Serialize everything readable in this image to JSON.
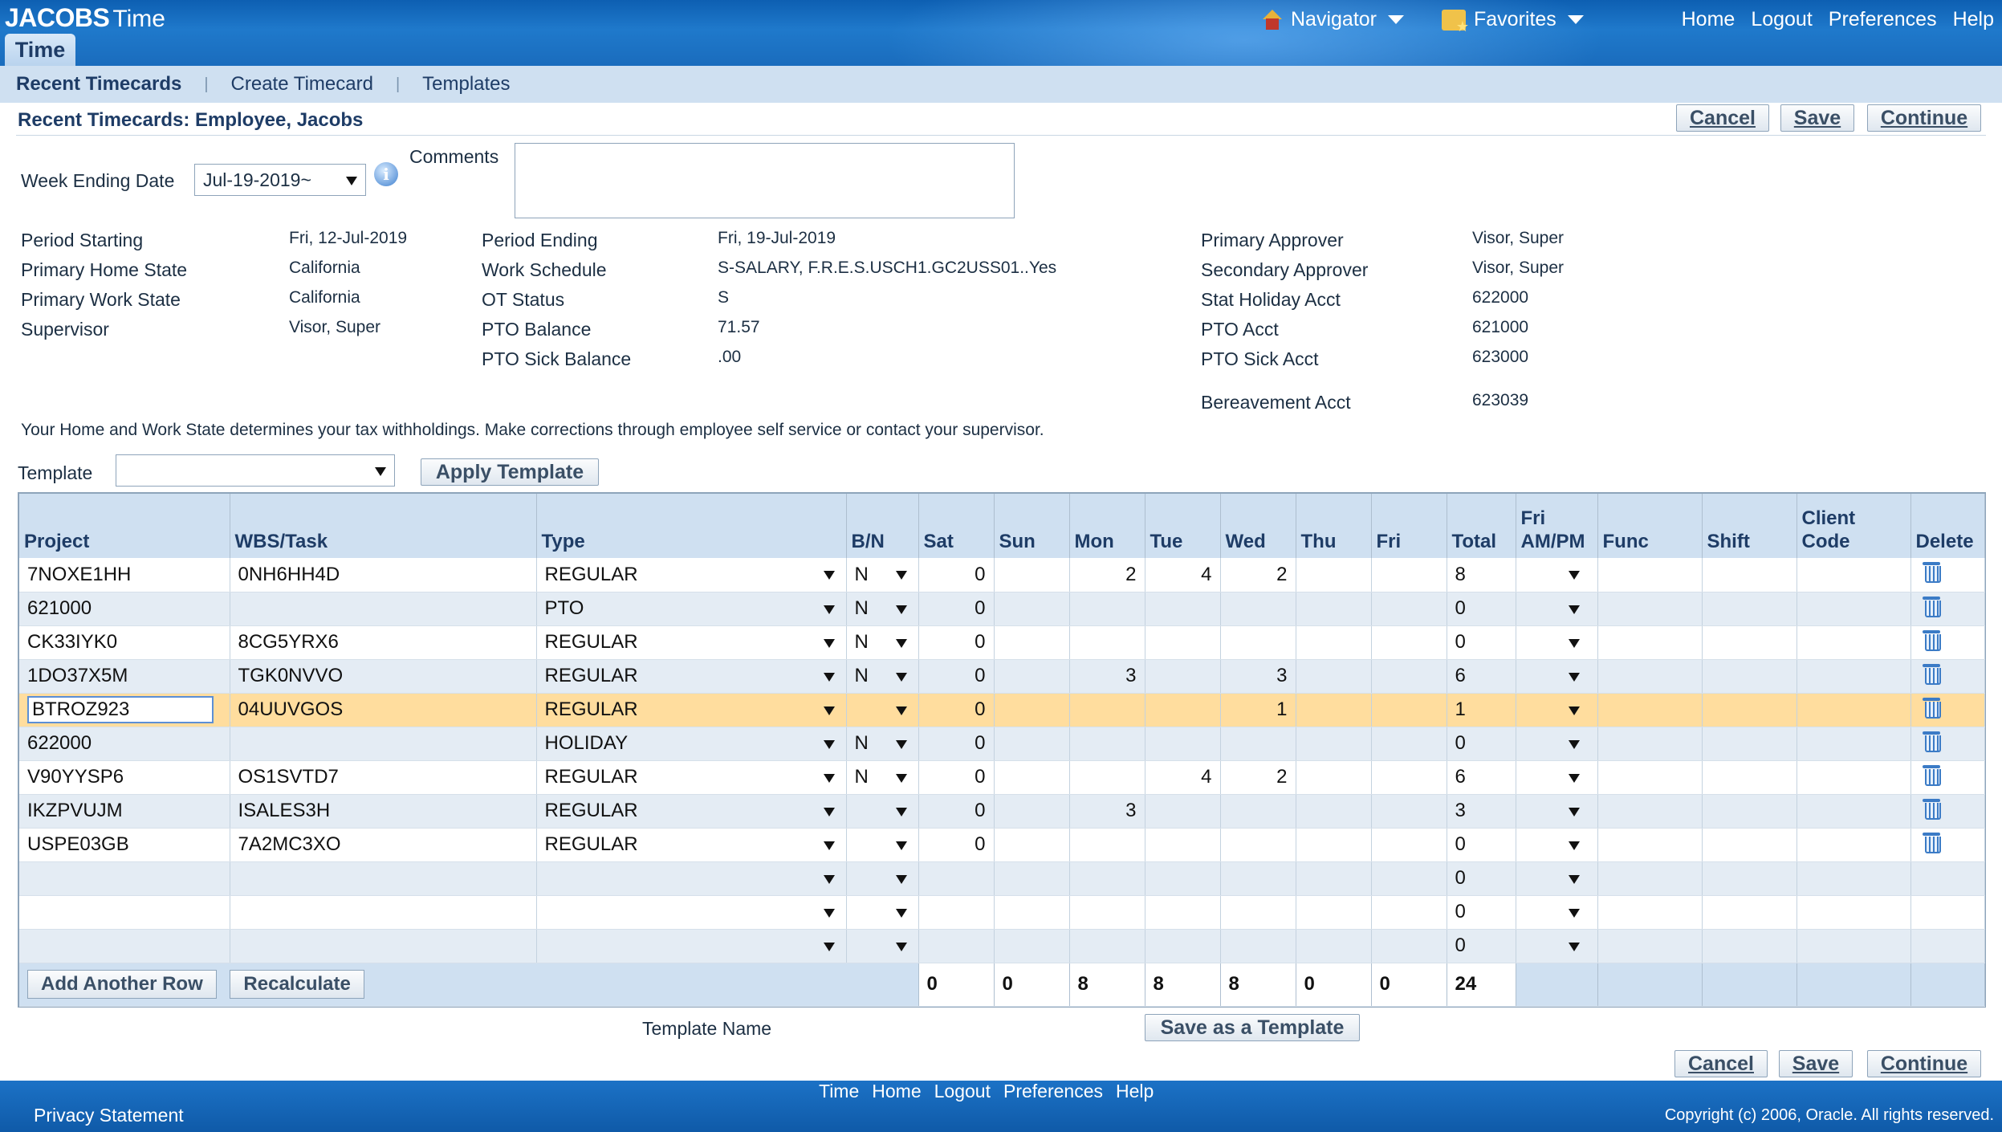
{
  "header": {
    "brand_bold": "JACOBS",
    "brand_light": "Time",
    "app_tab": "Time",
    "navigator": "Navigator",
    "favorites": "Favorites",
    "links": [
      "Home",
      "Logout",
      "Preferences",
      "Help"
    ]
  },
  "subnav": {
    "items": [
      "Recent Timecards",
      "Create Timecard",
      "Templates"
    ],
    "selected": "Recent Timecards"
  },
  "page": {
    "title": "Recent Timecards: Employee, Jacobs",
    "buttons": {
      "cancel": "Cancel",
      "save": "Save",
      "continue": "Continue"
    }
  },
  "form": {
    "week_ending_label": "Week Ending Date",
    "week_ending_value": "Jul-19-2019~",
    "comments_label": "Comments",
    "comments_value": "",
    "col1": [
      {
        "label": "Period Starting",
        "value": "Fri, 12-Jul-2019"
      },
      {
        "label": "Primary Home State",
        "value": "California"
      },
      {
        "label": "Primary Work State",
        "value": "California"
      },
      {
        "label": "Supervisor",
        "value": "Visor, Super"
      }
    ],
    "col2": [
      {
        "label": "Period Ending",
        "value": "Fri, 19-Jul-2019"
      },
      {
        "label": "Work Schedule",
        "value": "S-SALARY, F.R.E.S.USCH1.GC2USS01..Yes"
      },
      {
        "label": "OT Status",
        "value": "S"
      },
      {
        "label": "PTO Balance",
        "value": "71.57"
      },
      {
        "label": "PTO Sick Balance",
        "value": ".00"
      }
    ],
    "col3": [
      {
        "label": "Primary Approver",
        "value": "Visor, Super"
      },
      {
        "label": "Secondary Approver",
        "value": "Visor, Super"
      },
      {
        "label": "Stat Holiday Acct",
        "value": "622000"
      },
      {
        "label": "PTO Acct",
        "value": "621000"
      },
      {
        "label": "PTO Sick Acct",
        "value": "623000"
      },
      {
        "label": "Bereavement Acct",
        "value": "623039"
      }
    ],
    "notice": "Your Home and Work State determines your tax withholdings. Make corrections through employee self service or contact your supervisor.",
    "template_label": "Template",
    "template_value": "",
    "apply_template": "Apply Template"
  },
  "table": {
    "columns": [
      "Project",
      "WBS/Task",
      "Type",
      "B/N",
      "Sat",
      "Sun",
      "Mon",
      "Tue",
      "Wed",
      "Thu",
      "Fri",
      "Total",
      "Fri AM/PM",
      "Func",
      "Shift",
      "Client Code",
      "Delete"
    ],
    "rows": [
      {
        "project": "7NOXE1HH",
        "wbs": "0NH6HH4D",
        "type": "REGULAR",
        "bn": "N",
        "sat": "0",
        "sun": "",
        "mon": "2",
        "tue": "4",
        "wed": "2",
        "thu": "",
        "fri": "",
        "total": "8"
      },
      {
        "project": "621000",
        "wbs": "",
        "type": "PTO",
        "bn": "N",
        "sat": "0",
        "sun": "",
        "mon": "",
        "tue": "",
        "wed": "",
        "thu": "",
        "fri": "",
        "total": "0"
      },
      {
        "project": "CK33IYK0",
        "wbs": "8CG5YRX6",
        "type": "REGULAR",
        "bn": "N",
        "sat": "0",
        "sun": "",
        "mon": "",
        "tue": "",
        "wed": "",
        "thu": "",
        "fri": "",
        "total": "0"
      },
      {
        "project": "1DO37X5M",
        "wbs": "TGK0NVVO",
        "type": "REGULAR",
        "bn": "N",
        "sat": "0",
        "sun": "",
        "mon": "3",
        "tue": "",
        "wed": "3",
        "thu": "",
        "fri": "",
        "total": "6"
      },
      {
        "project": "BTROZ923",
        "wbs": "04UUVGOS",
        "type": "REGULAR",
        "bn": "",
        "sat": "0",
        "sun": "",
        "mon": "",
        "tue": "",
        "wed": "1",
        "thu": "",
        "fri": "",
        "total": "1"
      },
      {
        "project": "622000",
        "wbs": "",
        "type": "HOLIDAY",
        "bn": "N",
        "sat": "0",
        "sun": "",
        "mon": "",
        "tue": "",
        "wed": "",
        "thu": "",
        "fri": "",
        "total": "0"
      },
      {
        "project": "V90YYSP6",
        "wbs": "OS1SVTD7",
        "type": "REGULAR",
        "bn": "N",
        "sat": "0",
        "sun": "",
        "mon": "",
        "tue": "4",
        "wed": "2",
        "thu": "",
        "fri": "",
        "total": "6"
      },
      {
        "project": "IKZPVUJM",
        "wbs": "ISALES3H",
        "type": "REGULAR",
        "bn": "",
        "sat": "0",
        "sun": "",
        "mon": "3",
        "tue": "",
        "wed": "",
        "thu": "",
        "fri": "",
        "total": "3"
      },
      {
        "project": "USPE03GB",
        "wbs": "7A2MC3XO",
        "type": "REGULAR",
        "bn": "",
        "sat": "0",
        "sun": "",
        "mon": "",
        "tue": "",
        "wed": "",
        "thu": "",
        "fri": "",
        "total": "0"
      },
      {
        "project": "",
        "wbs": "",
        "type": "",
        "bn": "",
        "sat": "",
        "sun": "",
        "mon": "",
        "tue": "",
        "wed": "",
        "thu": "",
        "fri": "",
        "total": "0"
      },
      {
        "project": "",
        "wbs": "",
        "type": "",
        "bn": "",
        "sat": "",
        "sun": "",
        "mon": "",
        "tue": "",
        "wed": "",
        "thu": "",
        "fri": "",
        "total": "0"
      },
      {
        "project": "",
        "wbs": "",
        "type": "",
        "bn": "",
        "sat": "",
        "sun": "",
        "mon": "",
        "tue": "",
        "wed": "",
        "thu": "",
        "fri": "",
        "total": "0"
      }
    ],
    "totals": {
      "sat": "0",
      "sun": "0",
      "mon": "8",
      "tue": "8",
      "wed": "8",
      "thu": "0",
      "fri": "0",
      "total": "24"
    },
    "add_row": "Add Another Row",
    "recalculate": "Recalculate"
  },
  "template_name_label": "Template Name",
  "save_as_template": "Save as a Template",
  "footer": {
    "links": [
      "Time",
      "Home",
      "Logout",
      "Preferences",
      "Help"
    ],
    "privacy": "Privacy Statement",
    "copyright": "Copyright (c) 2006, Oracle. All rights reserved."
  }
}
